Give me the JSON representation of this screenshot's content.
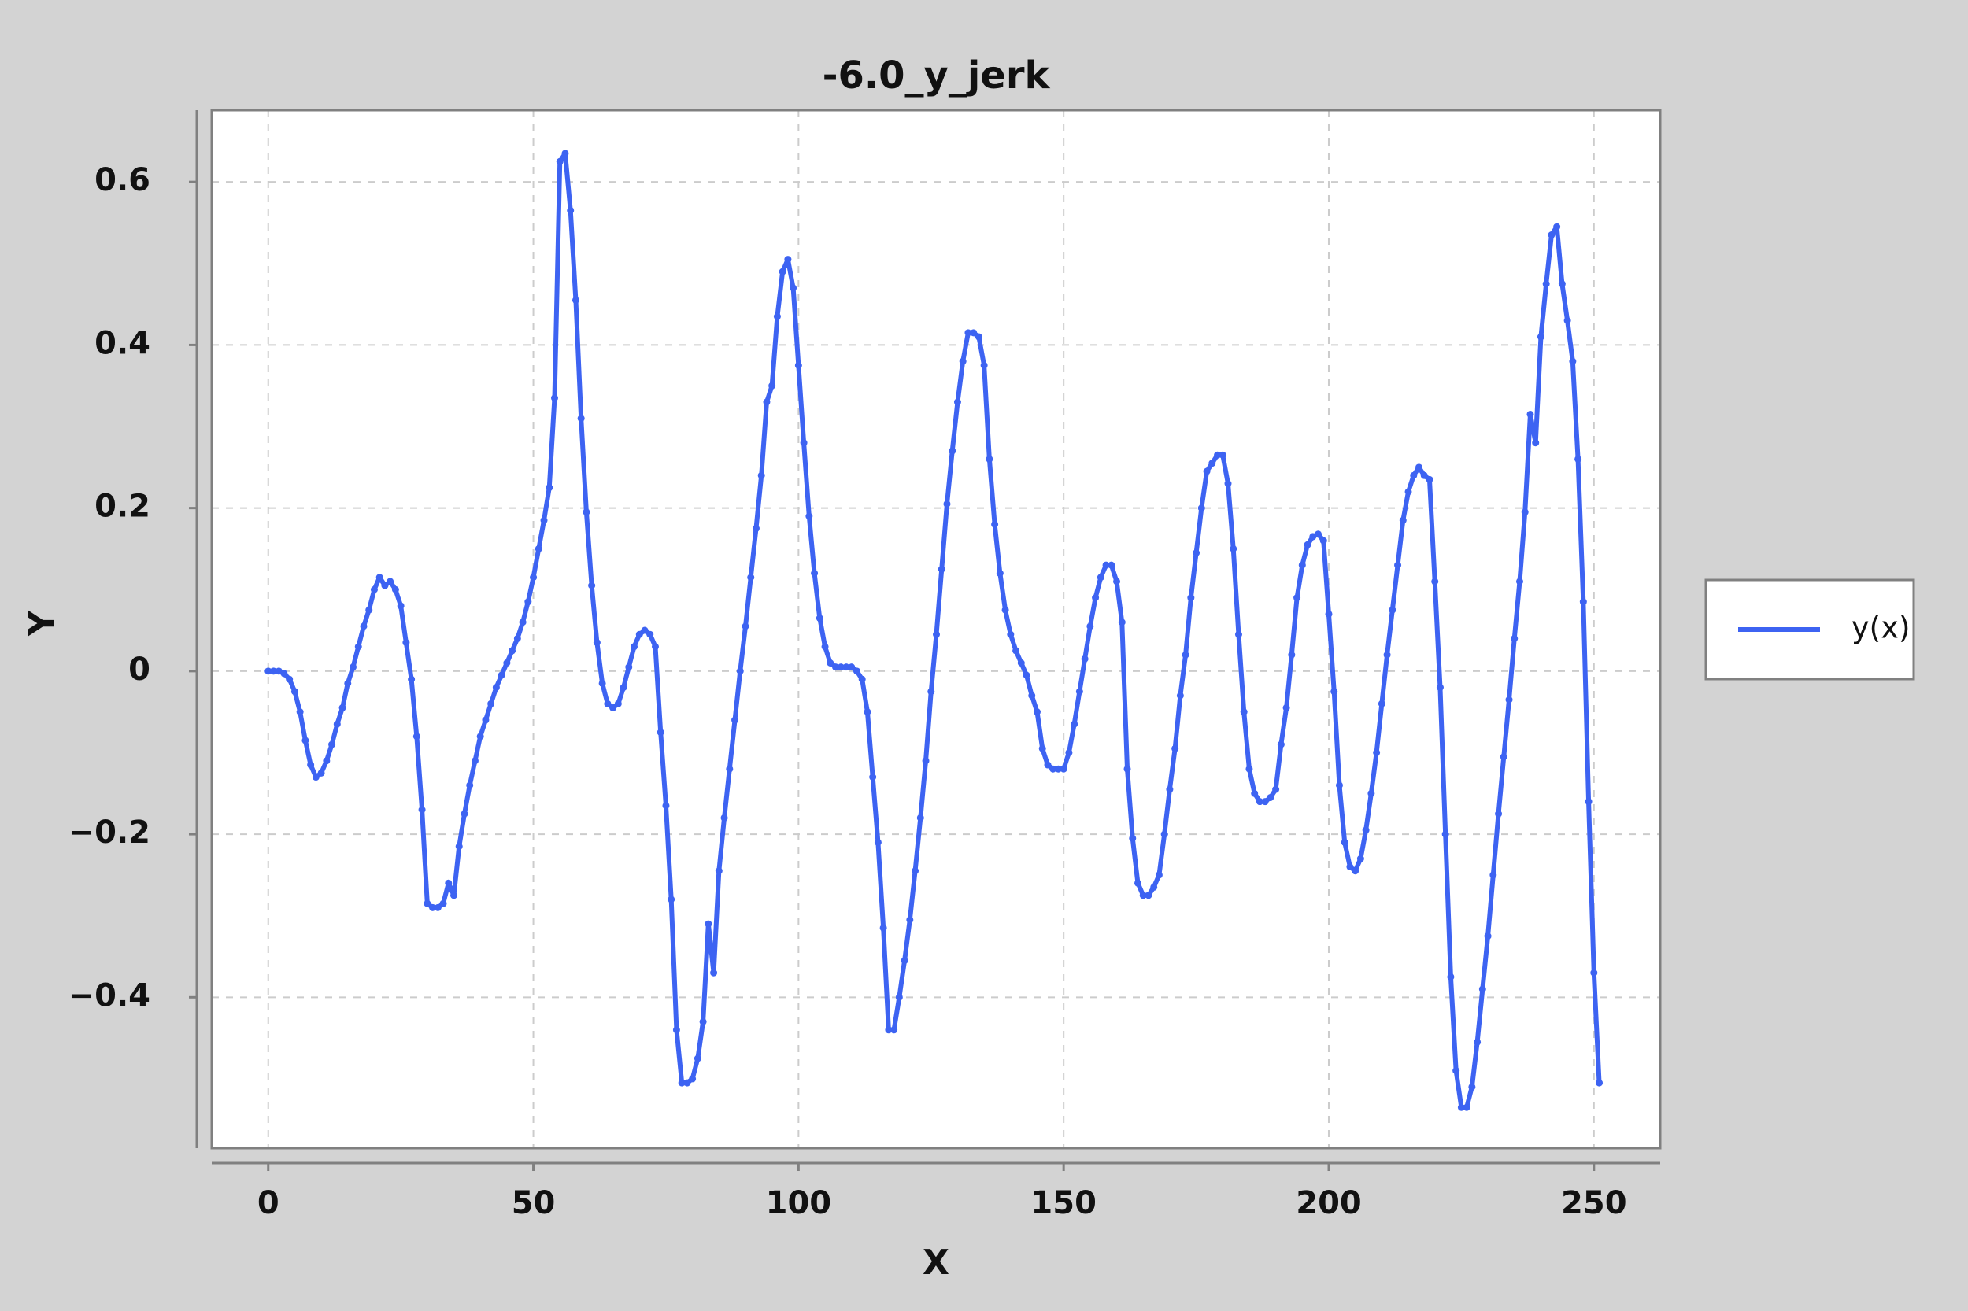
{
  "chart_data": {
    "type": "line",
    "title": "-6.0_y_jerk",
    "x_label": "X",
    "y_label": "Y",
    "xlim": [
      -10.65,
      262.5
    ],
    "ylim": [
      -0.585,
      0.688
    ],
    "xticks": [
      0,
      50,
      100,
      150,
      200,
      250
    ],
    "yticks": [
      {
        "value": -0.4,
        "label": "−0.4"
      },
      {
        "value": -0.2,
        "label": "−0.2"
      },
      0,
      0.2,
      0.4,
      0.6
    ],
    "grid": true,
    "legend": "right",
    "markers": true,
    "x": [
      0,
      1,
      2,
      3,
      4,
      5,
      6,
      7,
      8,
      9,
      10,
      11,
      12,
      13,
      14,
      15,
      16,
      17,
      18,
      19,
      20,
      21,
      22,
      23,
      24,
      25,
      26,
      27,
      28,
      29,
      30,
      31,
      32,
      33,
      34,
      35,
      36,
      37,
      38,
      39,
      40,
      41,
      42,
      43,
      44,
      45,
      46,
      47,
      48,
      49,
      50,
      51,
      52,
      53,
      54,
      55,
      56,
      57,
      58,
      59,
      60,
      61,
      62,
      63,
      64,
      65,
      66,
      67,
      68,
      69,
      70,
      71,
      72,
      73,
      74,
      75,
      76,
      77,
      78,
      79,
      80,
      81,
      82,
      83,
      84,
      85,
      86,
      87,
      88,
      89,
      90,
      91,
      92,
      93,
      94,
      95,
      96,
      97,
      98,
      99,
      100,
      101,
      102,
      103,
      104,
      105,
      106,
      107,
      108,
      109,
      110,
      111,
      112,
      113,
      114,
      115,
      116,
      117,
      118,
      119,
      120,
      121,
      122,
      123,
      124,
      125,
      126,
      127,
      128,
      129,
      130,
      131,
      132,
      133,
      134,
      135,
      136,
      137,
      138,
      139,
      140,
      141,
      142,
      143,
      144,
      145,
      146,
      147,
      148,
      149,
      150,
      151,
      152,
      153,
      154,
      155,
      156,
      157,
      158,
      159,
      160,
      161,
      162,
      163,
      164,
      165,
      166,
      167,
      168,
      169,
      170,
      171,
      172,
      173,
      174,
      175,
      176,
      177,
      178,
      179,
      180,
      181,
      182,
      183,
      184,
      185,
      186,
      187,
      188,
      189,
      190,
      191,
      192,
      193,
      194,
      195,
      196,
      197,
      198,
      199,
      200,
      201,
      202,
      203,
      204,
      205,
      206,
      207,
      208,
      209,
      210,
      211,
      212,
      213,
      214,
      215,
      216,
      217,
      218,
      219,
      220,
      221,
      222,
      223,
      224,
      225,
      226,
      227,
      228,
      229,
      230,
      231,
      232,
      233,
      234,
      235,
      236,
      237,
      238,
      239,
      240,
      241,
      242,
      243,
      244,
      245,
      246,
      247,
      248,
      249,
      250,
      251
    ],
    "series": [
      {
        "name": "y(x)",
        "color": "#3d63f2",
        "values": [
          0,
          0,
          0,
          -0.003,
          -0.01,
          -0.025,
          -0.05,
          -0.085,
          -0.115,
          -0.13,
          -0.125,
          -0.11,
          -0.09,
          -0.065,
          -0.045,
          -0.015,
          0.005,
          0.03,
          0.055,
          0.075,
          0.1,
          0.115,
          0.105,
          0.11,
          0.1,
          0.08,
          0.035,
          -0.01,
          -0.08,
          -0.17,
          -0.285,
          -0.29,
          -0.29,
          -0.285,
          -0.26,
          -0.275,
          -0.215,
          -0.175,
          -0.14,
          -0.11,
          -0.08,
          -0.06,
          -0.04,
          -0.02,
          -0.005,
          0.01,
          0.025,
          0.04,
          0.06,
          0.085,
          0.115,
          0.15,
          0.185,
          0.225,
          0.335,
          0.625,
          0.635,
          0.565,
          0.455,
          0.31,
          0.195,
          0.105,
          0.035,
          -0.015,
          -0.04,
          -0.045,
          -0.04,
          -0.02,
          0.005,
          0.03,
          0.045,
          0.05,
          0.045,
          0.03,
          -0.075,
          -0.165,
          -0.28,
          -0.44,
          -0.505,
          -0.505,
          -0.5,
          -0.475,
          -0.43,
          -0.31,
          -0.37,
          -0.245,
          -0.18,
          -0.12,
          -0.06,
          0,
          0.055,
          0.115,
          0.175,
          0.24,
          0.33,
          0.35,
          0.435,
          0.49,
          0.505,
          0.47,
          0.375,
          0.28,
          0.19,
          0.12,
          0.065,
          0.03,
          0.01,
          0.005,
          0.005,
          0.005,
          0.005,
          0,
          -0.01,
          -0.05,
          -0.13,
          -0.21,
          -0.315,
          -0.44,
          -0.44,
          -0.4,
          -0.355,
          -0.305,
          -0.245,
          -0.18,
          -0.11,
          -0.025,
          0.045,
          0.125,
          0.205,
          0.27,
          0.33,
          0.38,
          0.415,
          0.415,
          0.41,
          0.375,
          0.26,
          0.18,
          0.12,
          0.075,
          0.045,
          0.025,
          0.01,
          -0.005,
          -0.03,
          -0.05,
          -0.095,
          -0.115,
          -0.12,
          -0.12,
          -0.12,
          -0.1,
          -0.065,
          -0.025,
          0.015,
          0.055,
          0.09,
          0.115,
          0.13,
          0.13,
          0.11,
          0.06,
          -0.12,
          -0.205,
          -0.26,
          -0.275,
          -0.275,
          -0.265,
          -0.25,
          -0.2,
          -0.145,
          -0.095,
          -0.03,
          0.02,
          0.09,
          0.145,
          0.2,
          0.245,
          0.255,
          0.265,
          0.265,
          0.23,
          0.15,
          0.045,
          -0.05,
          -0.12,
          -0.15,
          -0.16,
          -0.16,
          -0.155,
          -0.145,
          -0.09,
          -0.045,
          0.02,
          0.09,
          0.13,
          0.155,
          0.165,
          0.168,
          0.16,
          0.07,
          -0.025,
          -0.14,
          -0.21,
          -0.24,
          -0.245,
          -0.23,
          -0.195,
          -0.15,
          -0.1,
          -0.04,
          0.02,
          0.075,
          0.13,
          0.185,
          0.22,
          0.24,
          0.25,
          0.24,
          0.235,
          0.11,
          -0.02,
          -0.2,
          -0.375,
          -0.49,
          -0.535,
          -0.535,
          -0.51,
          -0.455,
          -0.39,
          -0.325,
          -0.25,
          -0.175,
          -0.105,
          -0.035,
          0.04,
          0.11,
          0.195,
          0.315,
          0.28,
          0.41,
          0.475,
          0.535,
          0.545,
          0.475,
          0.43,
          0.38,
          0.26,
          0.085,
          -0.16,
          -0.37,
          -0.505
        ]
      }
    ]
  }
}
